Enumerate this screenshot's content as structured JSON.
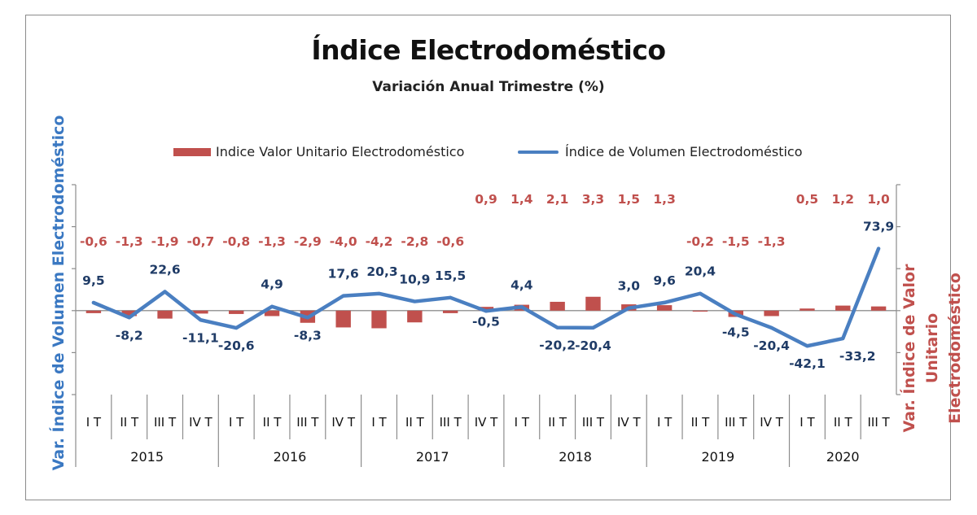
{
  "chart_data": {
    "type": "bar+line",
    "title": "Índice Electrodoméstico",
    "subtitle": "Variación Anual Trimestre  (%)",
    "ylabel_left": "Var. Índice de Volumen Electrodoméstico",
    "ylabel_right": "Var. Índice de Valor Unitario Electrodoméstico",
    "legend_position": "top",
    "years": [
      {
        "label": "2015",
        "quarters": [
          "I T",
          "II T",
          "III T",
          "IV T"
        ]
      },
      {
        "label": "2016",
        "quarters": [
          "I T",
          "II T",
          "III T",
          "IV T"
        ]
      },
      {
        "label": "2017",
        "quarters": [
          "I T",
          "II T",
          "III T",
          "IV T"
        ]
      },
      {
        "label": "2018",
        "quarters": [
          "I T",
          "II T",
          "III T",
          "IV T"
        ]
      },
      {
        "label": "2019",
        "quarters": [
          "I T",
          "II T",
          "III T",
          "IV T"
        ]
      },
      {
        "label": "2020",
        "quarters": [
          "I T",
          "II T",
          "III T"
        ]
      }
    ],
    "series": [
      {
        "name": "Indice Valor Unitario Electrodoméstico",
        "type": "bar",
        "axis": "right",
        "color": "#c0504d",
        "values": [
          -0.6,
          -1.3,
          -1.9,
          -0.7,
          -0.8,
          -1.3,
          -2.9,
          -4.0,
          -4.2,
          -2.8,
          -0.6,
          0.9,
          1.4,
          2.1,
          3.3,
          1.5,
          1.3,
          -0.2,
          -1.5,
          -1.3,
          0.5,
          1.2,
          1.0
        ],
        "labels": [
          "-0,6",
          "-1,3",
          "-1,9",
          "-0,7",
          "-0,8",
          "-1,3",
          "-2,9",
          "-4,0",
          "-4,2",
          "-2,8",
          "-0,6",
          "0,9",
          "1,4",
          "2,1",
          "3,3",
          "1,5",
          "1,3",
          "-0,2",
          "-1,5",
          "-1,3",
          "0,5",
          "1,2",
          "1,0"
        ]
      },
      {
        "name": "Índice de Volumen Electrodoméstico",
        "type": "line",
        "axis": "left",
        "color": "#4a7fc1",
        "values": [
          9.5,
          -8.2,
          22.6,
          -11.1,
          -20.6,
          4.9,
          -8.3,
          17.6,
          20.3,
          10.9,
          15.5,
          -0.5,
          4.4,
          -20.2,
          -20.4,
          3.0,
          9.6,
          20.4,
          -4.5,
          -20.4,
          -42.1,
          -33.2,
          73.9
        ],
        "labels": [
          "9,5",
          "-8,2",
          "22,6",
          "-11,1",
          "-20,6",
          "4,9",
          "-8,3",
          "17,6",
          "20,3",
          "10,9",
          "15,5",
          "-0,5",
          "4,4",
          "-20,2",
          "-20,4",
          "3,0",
          "9,6",
          "20,4",
          "-4,5",
          "-20,4",
          "-42,1",
          "-33,2",
          "73,9"
        ]
      }
    ],
    "ylim_left": [
      -100,
      150
    ],
    "ylim_right": [
      -20,
      30
    ],
    "grid": false
  }
}
